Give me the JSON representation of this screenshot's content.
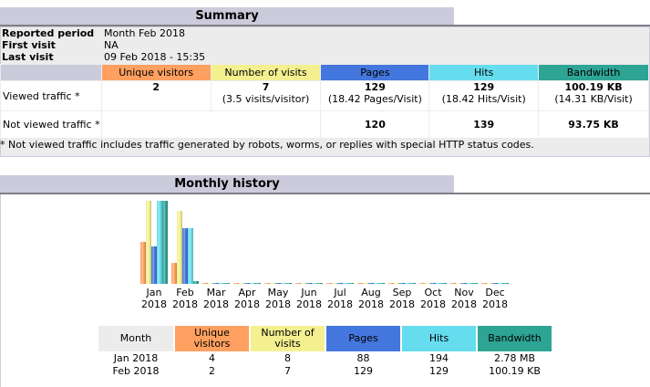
{
  "summary": {
    "title": "Summary",
    "reported_period_label": "Reported period",
    "reported_period_value": "Month Feb 2018",
    "first_visit_label": "First visit",
    "first_visit_value": "NA",
    "last_visit_label": "Last visit",
    "last_visit_value": "09 Feb 2018 - 15:35",
    "columns": [
      "Unique visitors",
      "Number of visits",
      "Pages",
      "Hits",
      "Bandwidth"
    ],
    "viewed": {
      "label": "Viewed traffic *",
      "unique_visitors": "2",
      "visits": "7",
      "visits_sub": "(3.5 visits/visitor)",
      "pages": "129",
      "pages_sub": "(18.42 Pages/Visit)",
      "hits": "129",
      "hits_sub": "(18.42 Hits/Visit)",
      "bandwidth": "100.19 KB",
      "bandwidth_sub": "(14.31 KB/Visit)"
    },
    "not_viewed": {
      "label": "Not viewed traffic *",
      "pages": "120",
      "hits": "139",
      "bandwidth": "93.75 KB"
    },
    "footnote": "* Not viewed traffic includes traffic generated by robots, worms, or replies with special HTTP status codes."
  },
  "colors": {
    "unique_visitors": "#ffa060",
    "visits": "#f4f090",
    "pages": "#4477dd",
    "hits": "#66ddee",
    "bandwidth": "#2ea495",
    "title_bg": "#cccbdb"
  },
  "monthly": {
    "title": "Monthly history",
    "table_headers": [
      "Month",
      "Unique visitors",
      "Number of visits",
      "Pages",
      "Hits",
      "Bandwidth"
    ],
    "rows": [
      [
        "Jan 2018",
        "4",
        "8",
        "88",
        "194",
        "2.78 MB"
      ],
      [
        "Feb 2018",
        "2",
        "7",
        "129",
        "129",
        "100.19 KB"
      ]
    ]
  },
  "chart_data": {
    "type": "bar",
    "title": "Monthly history",
    "categories": [
      "Jan 2018",
      "Feb 2018",
      "Mar 2018",
      "Apr 2018",
      "May 2018",
      "Jun 2018",
      "Jul 2018",
      "Aug 2018",
      "Sep 2018",
      "Oct 2018",
      "Nov 2018",
      "Dec 2018"
    ],
    "series": [
      {
        "name": "Unique visitors",
        "color": "#ffa060",
        "values": [
          4,
          2,
          0,
          0,
          0,
          0,
          0,
          0,
          0,
          0,
          0,
          0
        ]
      },
      {
        "name": "Number of visits",
        "color": "#f4f090",
        "values": [
          8,
          7,
          0,
          0,
          0,
          0,
          0,
          0,
          0,
          0,
          0,
          0
        ]
      },
      {
        "name": "Pages",
        "color": "#4477dd",
        "values": [
          88,
          129,
          0,
          0,
          0,
          0,
          0,
          0,
          0,
          0,
          0,
          0
        ]
      },
      {
        "name": "Hits",
        "color": "#66ddee",
        "values": [
          194,
          129,
          0,
          0,
          0,
          0,
          0,
          0,
          0,
          0,
          0,
          0
        ]
      },
      {
        "name": "Bandwidth (KB)",
        "color": "#2ea495",
        "values": [
          2846.72,
          100.19,
          0,
          0,
          0,
          0,
          0,
          0,
          0,
          0,
          0,
          0
        ]
      }
    ],
    "grid": false,
    "legend": "none"
  }
}
